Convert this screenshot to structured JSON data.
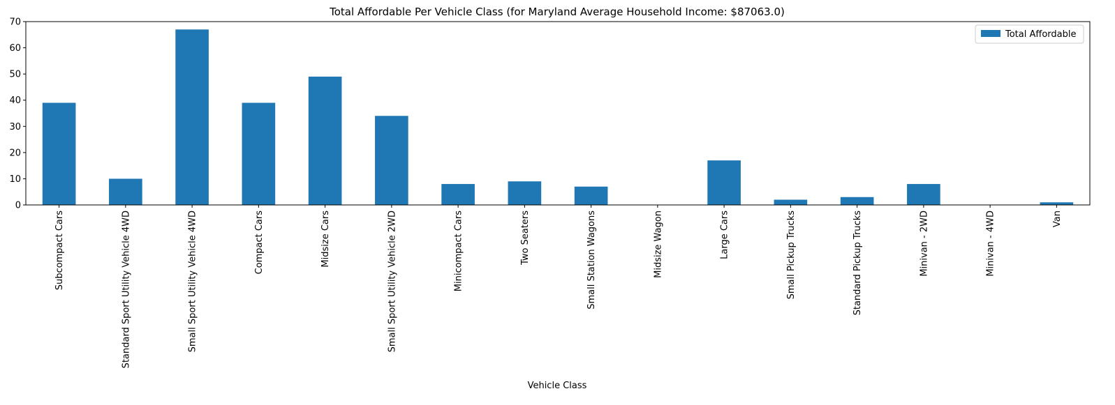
{
  "chart_data": {
    "type": "bar",
    "title": "Total Affordable Per Vehicle Class (for Maryland Average Household Income: $87063.0)",
    "xlabel": "Vehicle Class",
    "ylabel": "",
    "ylim": [
      0,
      70
    ],
    "yticks": [
      0,
      10,
      20,
      30,
      40,
      50,
      60,
      70
    ],
    "categories": [
      "Subcompact Cars",
      "Standard Sport Utility Vehicle 4WD",
      "Small Sport Utility Vehicle 4WD",
      "Compact Cars",
      "Midsize Cars",
      "Small Sport Utility Vehicle 2WD",
      "Minicompact Cars",
      "Two Seaters",
      "Small Station Wagons",
      "Midsize Wagon",
      "Large Cars",
      "Small Pickup Trucks",
      "Standard Pickup Trucks",
      "Minivan - 2WD",
      "Minivan - 4WD",
      "Van"
    ],
    "series": [
      {
        "name": "Total Affordable",
        "color": "#1f77b4",
        "values": [
          39,
          10,
          67,
          39,
          49,
          34,
          8,
          9,
          7,
          0,
          17,
          2,
          3,
          8,
          0,
          1
        ]
      }
    ],
    "grid": false,
    "legend_position": "top-right"
  }
}
